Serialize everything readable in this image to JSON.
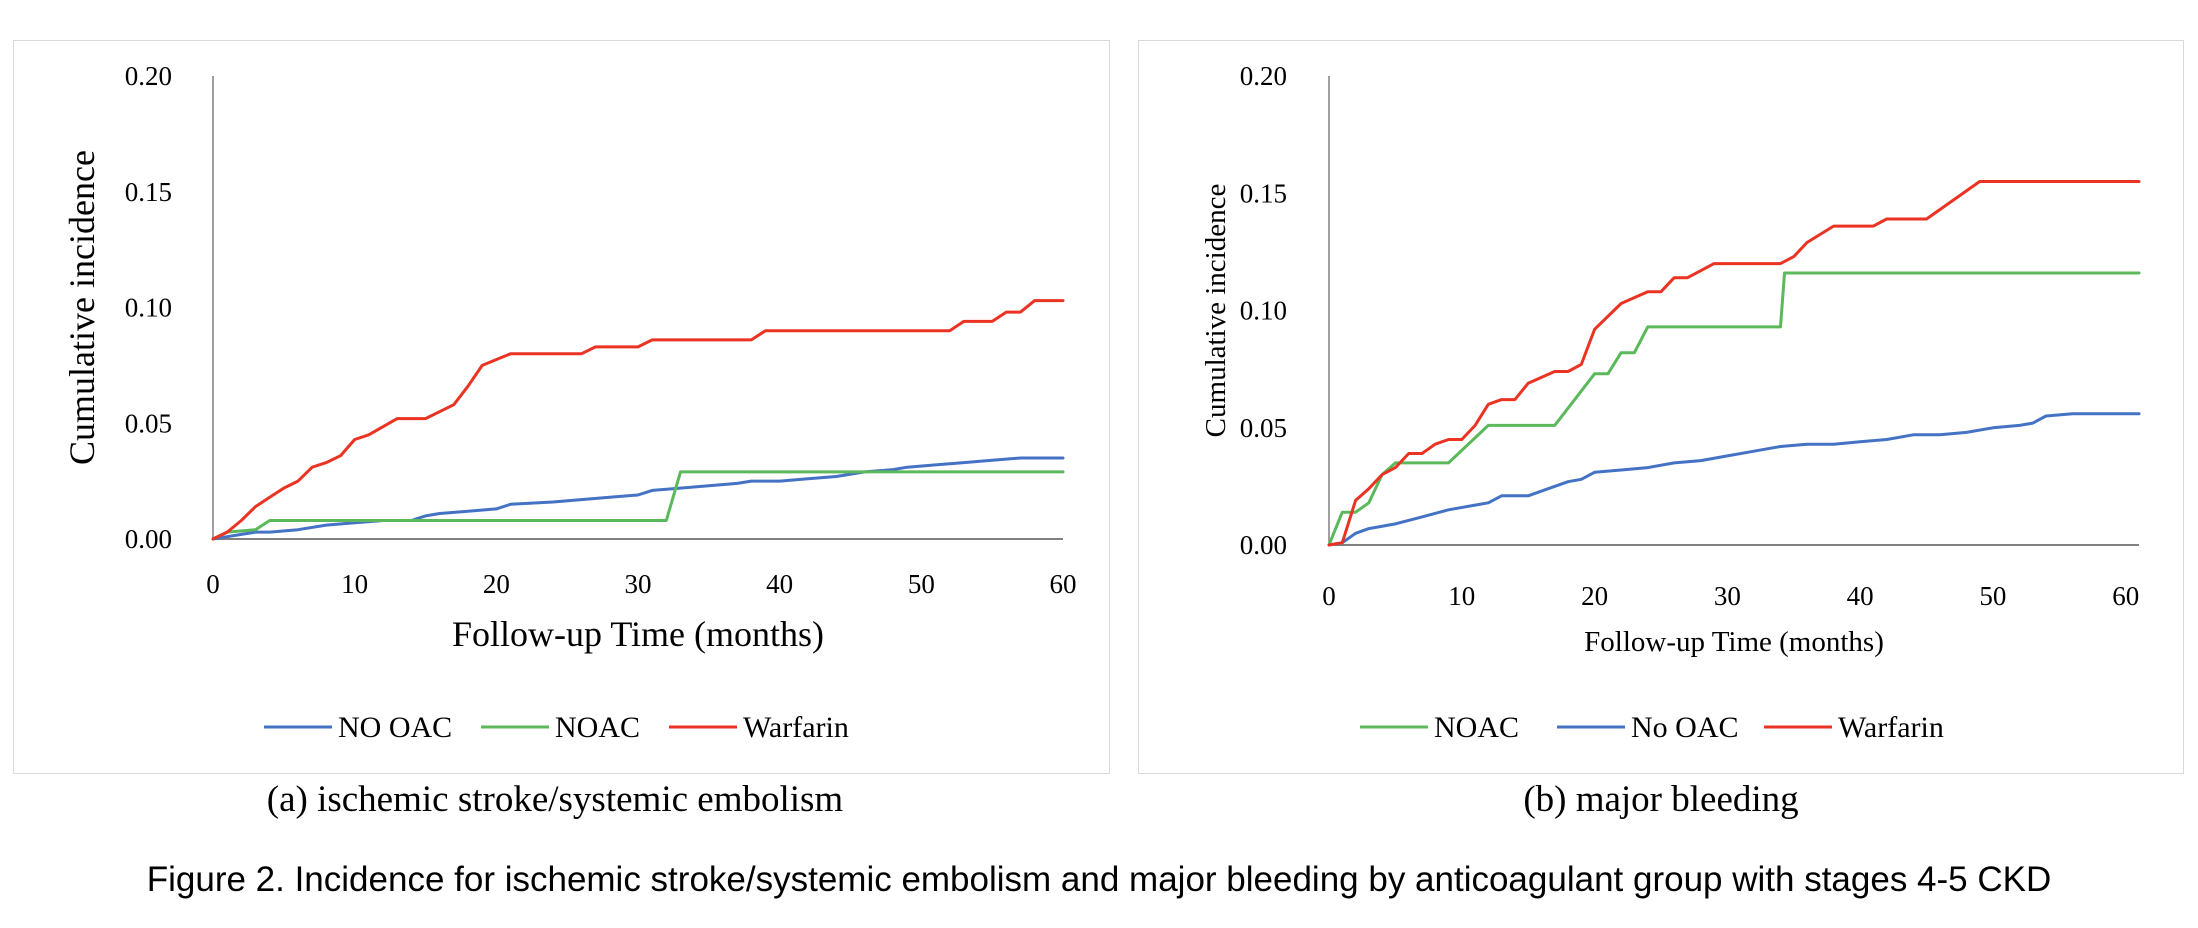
{
  "figure_caption": "Figure 2. Incidence for ischemic stroke/systemic embolism and major bleeding by anticoagulant group with stages 4-5 CKD",
  "colors": {
    "blue": "#4472c4",
    "green": "#5bb95b",
    "red": "#ea3323",
    "axis": "#808080"
  },
  "chart_data": [
    {
      "type": "line",
      "caption": "(a) ischemic stroke/systemic embolism",
      "xlabel": "Follow-up Time (months)",
      "ylabel": "Cumulative incidence",
      "xlim": [
        0,
        60
      ],
      "ylim": [
        0,
        0.2
      ],
      "xticks": [
        "0",
        "10",
        "20",
        "30",
        "40",
        "50",
        "60"
      ],
      "yticks": [
        "0.00",
        "0.05",
        "0.10",
        "0.15",
        "0.20"
      ],
      "legend_position": "bottom",
      "series": [
        {
          "name": "NO OAC",
          "color": "#4472c4",
          "points": [
            [
              0,
              0
            ],
            [
              1,
              0.001
            ],
            [
              2,
              0.002
            ],
            [
              3,
              0.003
            ],
            [
              4,
              0.003
            ],
            [
              6,
              0.004
            ],
            [
              8,
              0.006
            ],
            [
              10,
              0.007
            ],
            [
              12,
              0.008
            ],
            [
              14,
              0.008
            ],
            [
              15,
              0.01
            ],
            [
              16,
              0.011
            ],
            [
              18,
              0.012
            ],
            [
              20,
              0.013
            ],
            [
              21,
              0.015
            ],
            [
              24,
              0.016
            ],
            [
              26,
              0.017
            ],
            [
              28,
              0.018
            ],
            [
              30,
              0.019
            ],
            [
              31,
              0.021
            ],
            [
              33,
              0.022
            ],
            [
              35,
              0.023
            ],
            [
              37,
              0.024
            ],
            [
              38,
              0.025
            ],
            [
              40,
              0.025
            ],
            [
              42,
              0.026
            ],
            [
              44,
              0.027
            ],
            [
              46,
              0.029
            ],
            [
              48,
              0.03
            ],
            [
              49,
              0.031
            ],
            [
              51,
              0.032
            ],
            [
              53,
              0.033
            ],
            [
              55,
              0.034
            ],
            [
              57,
              0.035
            ],
            [
              59,
              0.035
            ],
            [
              60,
              0.035
            ]
          ]
        },
        {
          "name": "NOAC",
          "color": "#5bb95b",
          "points": [
            [
              0,
              0
            ],
            [
              1,
              0.003
            ],
            [
              3,
              0.004
            ],
            [
              4,
              0.008
            ],
            [
              10,
              0.008
            ],
            [
              20,
              0.008
            ],
            [
              32,
              0.008
            ],
            [
              33,
              0.029
            ],
            [
              40,
              0.029
            ],
            [
              50,
              0.029
            ],
            [
              60,
              0.029
            ]
          ]
        },
        {
          "name": "Warfarin",
          "color": "#ea3323",
          "points": [
            [
              0,
              0
            ],
            [
              1,
              0.003
            ],
            [
              2,
              0.008
            ],
            [
              3,
              0.014
            ],
            [
              4,
              0.018
            ],
            [
              5,
              0.022
            ],
            [
              6,
              0.025
            ],
            [
              7,
              0.031
            ],
            [
              8,
              0.033
            ],
            [
              9,
              0.036
            ],
            [
              10,
              0.043
            ],
            [
              11,
              0.045
            ],
            [
              13,
              0.052
            ],
            [
              15,
              0.052
            ],
            [
              17,
              0.058
            ],
            [
              18,
              0.066
            ],
            [
              19,
              0.075
            ],
            [
              21,
              0.08
            ],
            [
              26,
              0.08
            ],
            [
              27,
              0.083
            ],
            [
              30,
              0.083
            ],
            [
              31,
              0.086
            ],
            [
              38,
              0.086
            ],
            [
              39,
              0.09
            ],
            [
              52,
              0.09
            ],
            [
              53,
              0.094
            ],
            [
              55,
              0.094
            ],
            [
              56,
              0.098
            ],
            [
              57,
              0.098
            ],
            [
              58,
              0.103
            ],
            [
              60,
              0.103
            ]
          ]
        }
      ]
    },
    {
      "type": "line",
      "caption": "(b) major bleeding",
      "xlabel": "Follow-up Time (months)",
      "ylabel": "Cumulative incidence",
      "xlim": [
        0,
        61
      ],
      "ylim": [
        0,
        0.2
      ],
      "xticks": [
        "0",
        "10",
        "20",
        "30",
        "40",
        "50",
        "60"
      ],
      "yticks": [
        "0.00",
        "0.05",
        "0.10",
        "0.15",
        "0.20"
      ],
      "legend_position": "bottom",
      "series": [
        {
          "name": "NOAC",
          "color": "#5bb95b",
          "points": [
            [
              0,
              0
            ],
            [
              1,
              0.014
            ],
            [
              2,
              0.014
            ],
            [
              3,
              0.018
            ],
            [
              4,
              0.03
            ],
            [
              5,
              0.035
            ],
            [
              9,
              0.035
            ],
            [
              12,
              0.051
            ],
            [
              17,
              0.051
            ],
            [
              20,
              0.073
            ],
            [
              21,
              0.073
            ],
            [
              22,
              0.082
            ],
            [
              23,
              0.082
            ],
            [
              24,
              0.093
            ],
            [
              34,
              0.093
            ],
            [
              34.3,
              0.116
            ],
            [
              61,
              0.116
            ]
          ]
        },
        {
          "name": "No OAC",
          "color": "#4472c4",
          "points": [
            [
              0,
              0
            ],
            [
              1,
              0.001
            ],
            [
              2,
              0.005
            ],
            [
              3,
              0.007
            ],
            [
              5,
              0.009
            ],
            [
              7,
              0.012
            ],
            [
              9,
              0.015
            ],
            [
              11,
              0.017
            ],
            [
              12,
              0.018
            ],
            [
              13,
              0.021
            ],
            [
              15,
              0.021
            ],
            [
              16,
              0.023
            ],
            [
              18,
              0.027
            ],
            [
              19,
              0.028
            ],
            [
              20,
              0.031
            ],
            [
              22,
              0.032
            ],
            [
              24,
              0.033
            ],
            [
              26,
              0.035
            ],
            [
              28,
              0.036
            ],
            [
              30,
              0.038
            ],
            [
              32,
              0.04
            ],
            [
              34,
              0.042
            ],
            [
              36,
              0.043
            ],
            [
              38,
              0.043
            ],
            [
              40,
              0.044
            ],
            [
              42,
              0.045
            ],
            [
              44,
              0.047
            ],
            [
              46,
              0.047
            ],
            [
              48,
              0.048
            ],
            [
              50,
              0.05
            ],
            [
              52,
              0.051
            ],
            [
              53,
              0.052
            ],
            [
              54,
              0.055
            ],
            [
              56,
              0.056
            ],
            [
              58,
              0.056
            ],
            [
              61,
              0.056
            ]
          ]
        },
        {
          "name": "Warfarin",
          "color": "#ea3323",
          "points": [
            [
              0,
              0
            ],
            [
              1,
              0.001
            ],
            [
              2,
              0.019
            ],
            [
              3,
              0.024
            ],
            [
              4,
              0.03
            ],
            [
              5,
              0.033
            ],
            [
              6,
              0.039
            ],
            [
              7,
              0.039
            ],
            [
              8,
              0.043
            ],
            [
              9,
              0.045
            ],
            [
              10,
              0.045
            ],
            [
              11,
              0.051
            ],
            [
              12,
              0.06
            ],
            [
              13,
              0.062
            ],
            [
              14,
              0.062
            ],
            [
              15,
              0.069
            ],
            [
              17,
              0.074
            ],
            [
              18,
              0.074
            ],
            [
              19,
              0.077
            ],
            [
              20,
              0.092
            ],
            [
              22,
              0.103
            ],
            [
              24,
              0.108
            ],
            [
              25,
              0.108
            ],
            [
              26,
              0.114
            ],
            [
              27,
              0.114
            ],
            [
              29,
              0.12
            ],
            [
              34,
              0.12
            ],
            [
              35,
              0.123
            ],
            [
              36,
              0.129
            ],
            [
              38,
              0.136
            ],
            [
              41,
              0.136
            ],
            [
              42,
              0.139
            ],
            [
              45,
              0.139
            ],
            [
              49,
              0.155
            ],
            [
              61,
              0.155
            ]
          ]
        }
      ]
    }
  ]
}
